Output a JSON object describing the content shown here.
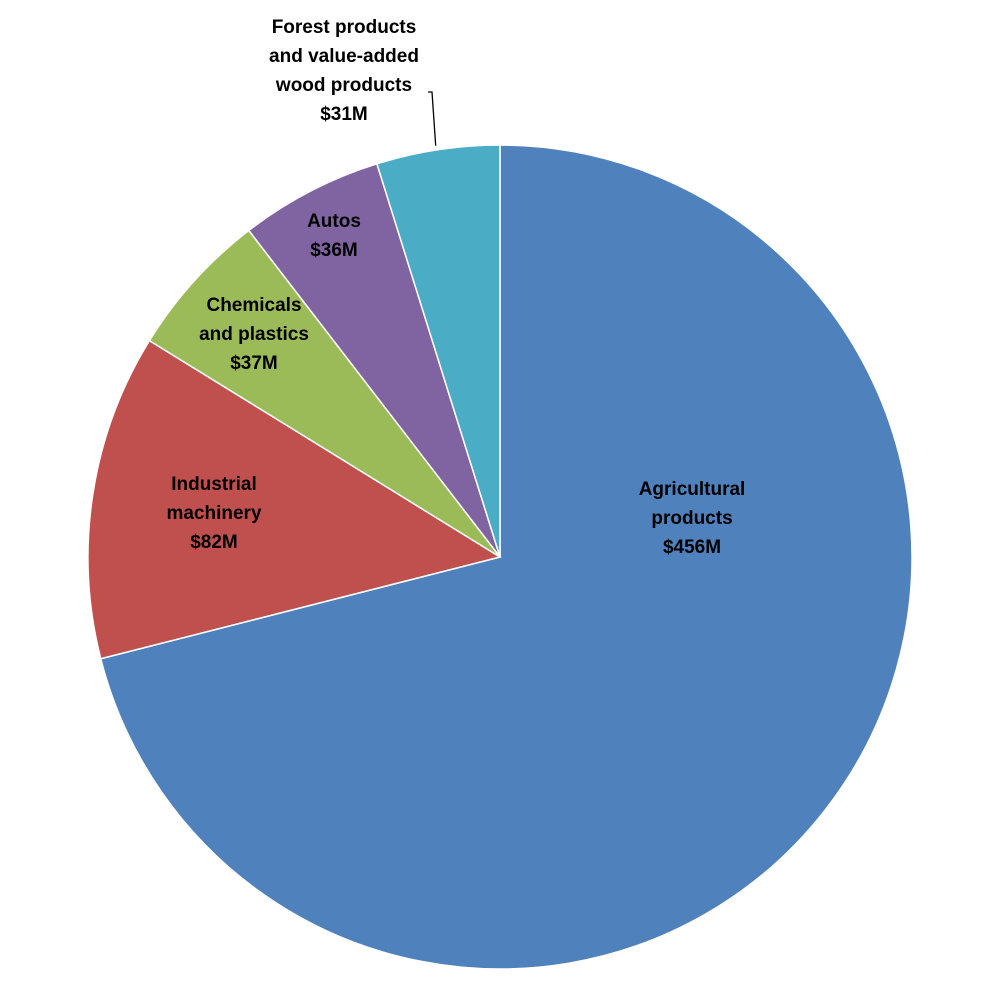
{
  "chart_data": {
    "type": "pie",
    "title": "",
    "start_angle_deg": 0,
    "direction": "clockwise",
    "slices": [
      {
        "name": "Agricultural products",
        "value": 456,
        "value_label": "$456M",
        "label_lines": [
          "Agricultural",
          "products",
          "$456M"
        ],
        "color": "#4F81BD"
      },
      {
        "name": "Industrial machinery",
        "value": 82,
        "value_label": "$82M",
        "label_lines": [
          "Industrial",
          "machinery",
          "$82M"
        ],
        "color": "#C0504D"
      },
      {
        "name": "Chemicals and plastics",
        "value": 37,
        "value_label": "$37M",
        "label_lines": [
          "Chemicals",
          "and plastics",
          "$37M"
        ],
        "color": "#9BBB59"
      },
      {
        "name": "Autos",
        "value": 36,
        "value_label": "$36M",
        "label_lines": [
          "Autos",
          "$36M"
        ],
        "color": "#8064A2"
      },
      {
        "name": "Forest products and value-added wood products",
        "value": 31,
        "value_label": "$31M",
        "label_lines": [
          "Forest products",
          "and value-added",
          "wood products",
          "$31M"
        ],
        "color": "#4BACC6"
      }
    ]
  }
}
